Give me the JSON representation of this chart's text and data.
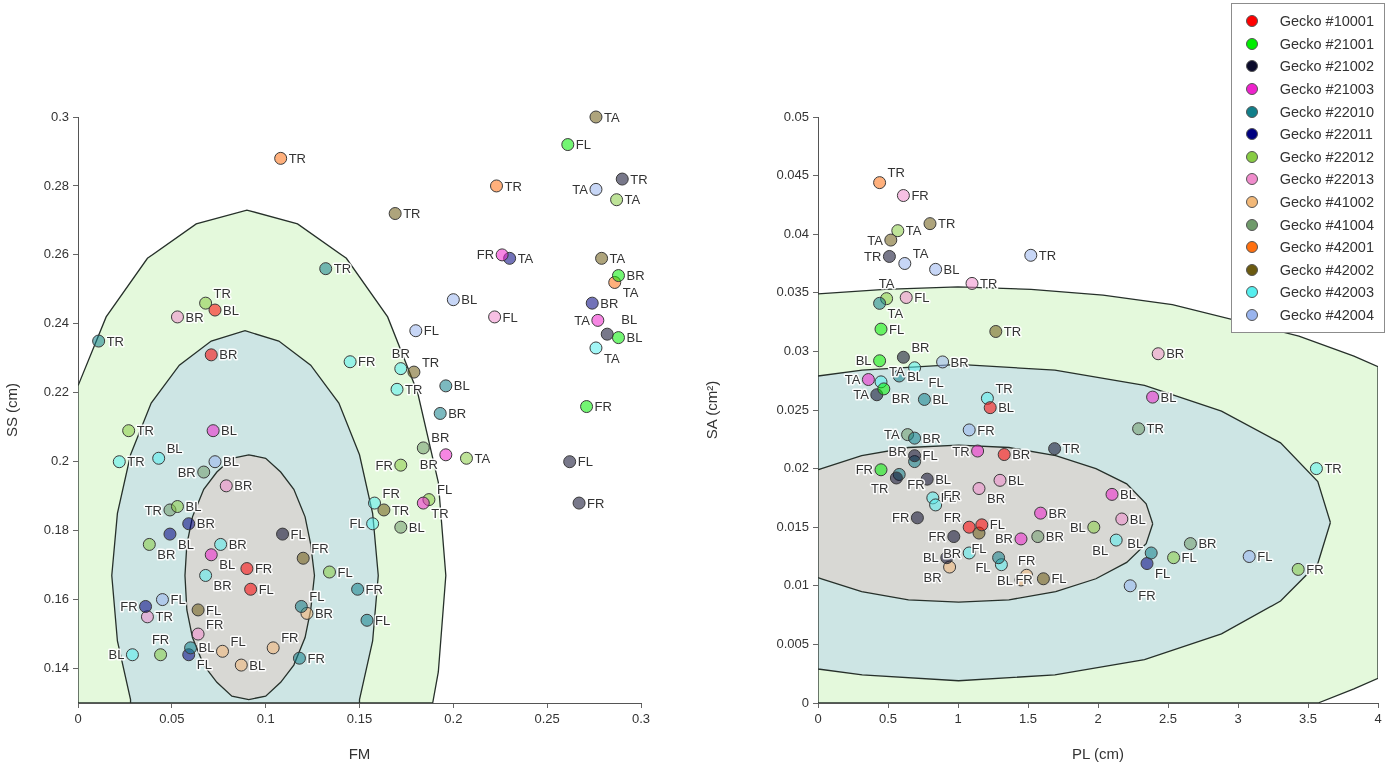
{
  "chart_data": [
    {
      "type": "scatter",
      "xlabel": "FM",
      "ylabel": "SS (cm)",
      "xlim": [
        0,
        0.3
      ],
      "ylim": [
        0.13,
        0.3
      ],
      "xticks": [
        0,
        0.05,
        0.1,
        0.15,
        0.2,
        0.25,
        0.3
      ],
      "yticks": [
        0.14,
        0.16,
        0.18,
        0.2,
        0.22,
        0.24,
        0.26,
        0.28,
        0.3
      ],
      "marker": "circle",
      "legend": false,
      "series": [
        {
          "type": "area",
          "marker": "none",
          "color": "#e4f9dc",
          "x": [
            0.189,
            0.192,
            0.196,
            0.192,
            0.181,
            0.165,
            0.143,
            0.117,
            0.09,
            0.063,
            0.037,
            0.015,
            0,
            0
          ],
          "values": [
            0.13,
            0.139,
            0.167,
            0.194,
            0.22,
            0.242,
            0.259,
            0.269,
            0.273,
            0.269,
            0.259,
            0.242,
            0.222,
            0.13
          ]
        },
        {
          "type": "area",
          "marker": "none",
          "color": "#cde5e4",
          "x": [
            0.16,
            0.157,
            0.15,
            0.139,
            0.124,
            0.107,
            0.089,
            0.071,
            0.054,
            0.039,
            0.028,
            0.021,
            0.018,
            0.021,
            0.028,
            0.028,
            0.15,
            0.15,
            0.157
          ],
          "values": [
            0.167,
            0.185,
            0.202,
            0.217,
            0.228,
            0.235,
            0.238,
            0.235,
            0.228,
            0.217,
            0.202,
            0.185,
            0.167,
            0.148,
            0.131,
            0.13,
            0.13,
            0.131,
            0.148
          ]
        },
        {
          "type": "area",
          "marker": "none",
          "color": "#d8d8d4",
          "x": [
            0.126,
            0.124,
            0.121,
            0.115,
            0.108,
            0.1,
            0.091,
            0.082,
            0.074,
            0.067,
            0.061,
            0.058,
            0.057,
            0.058,
            0.061,
            0.067,
            0.074,
            0.082,
            0.091,
            0.1,
            0.108,
            0.115,
            0.121,
            0.124
          ],
          "values": [
            0.167,
            0.176,
            0.184,
            0.192,
            0.197,
            0.201,
            0.202,
            0.201,
            0.197,
            0.192,
            0.184,
            0.176,
            0.167,
            0.157,
            0.149,
            0.141,
            0.136,
            0.132,
            0.131,
            0.132,
            0.136,
            0.141,
            0.149,
            0.157
          ]
        },
        {
          "color": "#ff0000",
          "x": [
            0.073,
            0.071,
            0.09,
            0.092
          ],
          "values": [
            0.244,
            0.231,
            0.169,
            0.163
          ],
          "value_labels": [
            "BL",
            "BR",
            "FR",
            "FL"
          ]
        },
        {
          "color": "#00ee00",
          "x": [
            0.261,
            0.288,
            0.288,
            0.271
          ],
          "values": [
            0.292,
            0.254,
            0.236,
            0.216
          ],
          "value_labels": [
            "FL",
            "BR",
            "BL",
            "FR"
          ]
        },
        {
          "color": "#0a0a2a",
          "x": [
            0.29,
            0.282,
            0.262,
            0.267,
            0.109
          ],
          "values": [
            0.282,
            0.237,
            0.2,
            0.188,
            0.179
          ],
          "value_labels": [
            "TR",
            "BL",
            "FL",
            "FR",
            "FL"
          ]
        },
        {
          "color": "#ee22cc",
          "x": [
            0.226,
            0.277,
            0.072,
            0.196,
            0.184,
            0.071
          ],
          "values": [
            0.26,
            0.241,
            0.209,
            0.202,
            0.188,
            0.173
          ],
          "value_labels": [
            "FR",
            "TA",
            "BL",
            "BR",
            "TR",
            "BL"
          ]
        },
        {
          "color": "#117f8a",
          "x": [
            0.011,
            0.132,
            0.196,
            0.193,
            0.06,
            0.149,
            0.154,
            0.119,
            0.118
          ],
          "values": [
            0.235,
            0.256,
            0.222,
            0.214,
            0.146,
            0.163,
            0.154,
            0.158,
            0.143
          ],
          "value_labels": [
            "TR",
            "TR",
            "BL",
            "BR",
            "BL",
            "FR",
            "FL",
            "FL",
            "FR"
          ]
        },
        {
          "color": "#000080",
          "x": [
            0.23,
            0.274,
            0.059,
            0.049,
            0.036,
            0.059
          ],
          "values": [
            0.259,
            0.246,
            0.182,
            0.179,
            0.158,
            0.144
          ],
          "value_labels": [
            "TA",
            "BR",
            "BR",
            "BL",
            "FR",
            "FL"
          ]
        },
        {
          "color": "#88cc44",
          "x": [
            0.287,
            0.068,
            0.027,
            0.207,
            0.172,
            0.187,
            0.053,
            0.038,
            0.134,
            0.044
          ],
          "values": [
            0.276,
            0.246,
            0.209,
            0.201,
            0.199,
            0.189,
            0.187,
            0.176,
            0.168,
            0.144
          ],
          "value_labels": [
            "TA",
            "TR",
            "TR",
            "TA",
            "FR",
            "FL",
            "BL",
            "BR",
            "FL",
            "FR"
          ]
        },
        {
          "color": "#f08ccc",
          "x": [
            0.222,
            0.053,
            0.079,
            0.037,
            0.064
          ],
          "values": [
            0.242,
            0.242,
            0.193,
            0.155,
            0.15
          ],
          "value_labels": [
            "FL",
            "BR",
            "BR",
            "TR",
            "FR"
          ]
        },
        {
          "color": "#f2b878",
          "x": [
            0.122,
            0.077,
            0.087,
            0.104
          ],
          "values": [
            0.156,
            0.145,
            0.141,
            0.146
          ],
          "value_labels": [
            "BR",
            "FL",
            "BL",
            "FR"
          ]
        },
        {
          "color": "#6f9a6a",
          "x": [
            0.067,
            0.184,
            0.172,
            0.049
          ],
          "values": [
            0.197,
            0.204,
            0.181,
            0.186
          ],
          "value_labels": [
            "BR",
            "BR",
            "BL",
            "TR"
          ]
        },
        {
          "color": "#ff7010",
          "x": [
            0.108,
            0.223,
            0.286
          ],
          "values": [
            0.288,
            0.28,
            0.252
          ],
          "value_labels": [
            "TR",
            "TR",
            "TA"
          ]
        },
        {
          "color": "#6b5a10",
          "x": [
            0.276,
            0.169,
            0.279,
            0.179,
            0.163,
            0.12,
            0.064
          ],
          "values": [
            0.3,
            0.272,
            0.259,
            0.226,
            0.186,
            0.172,
            0.157
          ],
          "value_labels": [
            "TA",
            "TR",
            "TA",
            "TR",
            "TR",
            "FR",
            "FL"
          ]
        },
        {
          "color": "#55eeee",
          "x": [
            0.276,
            0.145,
            0.172,
            0.17,
            0.022,
            0.043,
            0.158,
            0.157,
            0.076,
            0.068,
            0.029
          ],
          "values": [
            0.233,
            0.229,
            0.227,
            0.221,
            0.2,
            0.201,
            0.188,
            0.182,
            0.176,
            0.167,
            0.144
          ],
          "value_labels": [
            "TA",
            "FR",
            "BR",
            "TR",
            "TR",
            "BL",
            "FR",
            "FL",
            "BR",
            "BR",
            "BL"
          ]
        },
        {
          "color": "#99b4ee",
          "x": [
            0.276,
            0.2,
            0.18,
            0.073,
            0.045
          ],
          "values": [
            0.279,
            0.247,
            0.238,
            0.2,
            0.16
          ],
          "value_labels": [
            "TA",
            "BL",
            "FL",
            "BL",
            "FL"
          ]
        }
      ]
    },
    {
      "type": "scatter",
      "xlabel": "PL (cm)",
      "ylabel": "SA (cm²)",
      "xlim": [
        0,
        4
      ],
      "ylim": [
        0,
        0.05
      ],
      "xticks": [
        0,
        0.5,
        1,
        1.5,
        2,
        2.5,
        3,
        3.5,
        4
      ],
      "yticks": [
        0,
        0.005,
        0.01,
        0.015,
        0.02,
        0.025,
        0.03,
        0.035,
        0.04,
        0.045,
        0.05
      ],
      "marker": "circle",
      "legend": "top right",
      "series": [
        {
          "type": "area",
          "marker": "none",
          "color": "#e4f9dc",
          "x": [
            4,
            4,
            3.828,
            3.435,
            3.0,
            2.531,
            2.036,
            1.522,
            1.0,
            0.478,
            0,
            0,
            3.572,
            3.828
          ],
          "values": [
            0.0021,
            0.0287,
            0.0296,
            0.0313,
            null,
            0.034,
            0.0348,
            0.0353,
            0.0355,
            0.0353,
            0.0349,
            0,
            0,
            0.0012
          ]
        },
        {
          "type": "area",
          "marker": "none",
          "color": "#cde5e4",
          "x": [
            3.66,
            3.57,
            3.304,
            2.882,
            2.332,
            1.692,
            1.004,
            0.316,
            0,
            0,
            0.316,
            1.004,
            1.692,
            2.332,
            2.882,
            3.304,
            3.57
          ],
          "values": [
            0.0154,
            0.0189,
            0.0222,
            0.0249,
            0.0271,
            0.0284,
            0.0289,
            0.0284,
            0.0279,
            0.0029,
            0.0024,
            0.0019,
            0.0024,
            0.0037,
            0.0059,
            0.0087,
            0.0119
          ]
        },
        {
          "type": "area",
          "marker": "none",
          "color": "#d8d8d4",
          "x": [
            2.391,
            2.344,
            2.205,
            1.985,
            1.698,
            1.364,
            1.005,
            0.646,
            0.312,
            0.025,
            0,
            0,
            0.025,
            0.312,
            0.646,
            1.005,
            1.364,
            1.698,
            1.985,
            2.205,
            2.344
          ],
          "values": [
            0.0153,
            0.017,
            0.0187,
            0.02,
            0.0211,
            0.0218,
            0.022,
            0.0218,
            0.0211,
            0.02,
            0.0199,
            0.0107,
            0.0106,
            0.0095,
            0.0088,
            0.0086,
            0.0088,
            0.0095,
            0.0106,
            0.012,
            0.0136
          ]
        },
        {
          "name": "Gecko #10001",
          "color": "#ff0000",
          "x": [
            1.23,
            1.33,
            1.08,
            1.17
          ],
          "values": [
            0.0252,
            0.0212,
            0.015,
            0.0152
          ],
          "value_labels": [
            "BL",
            "BR",
            "FR",
            "FL"
          ]
        },
        {
          "name": "Gecko #21001",
          "color": "#00ee00",
          "x": [
            0.45,
            0.44,
            0.47,
            0.45
          ],
          "values": [
            0.0319,
            0.0292,
            0.0268,
            0.0199
          ],
          "value_labels": [
            "FL",
            "BL",
            "BR",
            "FR"
          ]
        },
        {
          "name": "Gecko #21002",
          "color": "#0a0a2a",
          "x": [
            0.51,
            0.61,
            0.42,
            1.69,
            0.69,
            0.56,
            0.78,
            0.71,
            0.97,
            0.92
          ],
          "values": [
            0.0381,
            0.0295,
            0.0263,
            0.0217,
            0.0211,
            0.0192,
            0.0191,
            0.0158,
            0.0142,
            0.0124
          ],
          "value_labels": [
            "TR",
            "BR",
            "TA",
            "TR",
            "FL",
            "TR",
            "BL",
            "FR",
            "FR",
            "BL"
          ]
        },
        {
          "name": "Gecko #21003",
          "color": "#ee22cc",
          "x": [
            0.36,
            2.39,
            1.14,
            2.1,
            1.59,
            1.45
          ],
          "values": [
            0.0276,
            0.0261,
            0.0215,
            0.0178,
            0.0162,
            0.014
          ],
          "value_labels": [
            "TA",
            "BL",
            "TR",
            "BL",
            "BR",
            "BR"
          ]
        },
        {
          "name": "Gecko #22010",
          "color": "#117f8a",
          "x": [
            0.44,
            0.58,
            0.76,
            0.69,
            0.69,
            0.58,
            1.29,
            2.38
          ],
          "values": [
            0.0341,
            0.0279,
            0.0259,
            0.0226,
            0.0206,
            0.0195,
            0.0124,
            0.0128
          ],
          "value_labels": [
            "TA",
            "BL",
            "BL",
            "BR",
            "BR",
            "FR",
            "FL",
            "BL"
          ]
        },
        {
          "name": "Gecko #22011",
          "color": "#000080",
          "x": [
            2.35
          ],
          "values": [
            0.0119
          ],
          "value_labels": [
            "FL"
          ]
        },
        {
          "name": "Gecko #22012",
          "color": "#88cc44",
          "x": [
            0.57,
            0.49,
            1.97,
            2.54,
            3.43
          ],
          "values": [
            0.0403,
            0.0345,
            0.015,
            0.0124,
            0.0114
          ],
          "value_labels": [
            "TA",
            "TA",
            "BL",
            "FL",
            "FR"
          ]
        },
        {
          "name": "Gecko #22013",
          "color": "#f08ccc",
          "x": [
            0.61,
            0.63,
            1.1,
            2.43,
            1.3,
            1.15,
            2.17
          ],
          "values": [
            0.0433,
            0.0346,
            0.0358,
            0.0298,
            0.019,
            0.0183,
            0.0157
          ],
          "value_labels": [
            "FR",
            "FL",
            "TR",
            "BR",
            "BL",
            "BR",
            "BL"
          ]
        },
        {
          "name": "Gecko #41002",
          "color": "#f2b878",
          "x": [
            0.94,
            1.49,
            1.45
          ],
          "values": [
            0.0116,
            0.0109,
            0.0105
          ],
          "value_labels": [
            "BR",
            "FR",
            "BL"
          ]
        },
        {
          "name": "Gecko #41004",
          "color": "#6f9a6a",
          "x": [
            2.29,
            0.64,
            1.57,
            2.66
          ],
          "values": [
            0.0234,
            0.0229,
            0.0142,
            0.0136
          ],
          "value_labels": [
            "TR",
            "TA",
            "BR",
            "BR"
          ]
        },
        {
          "name": "Gecko #42001",
          "color": "#ff7010",
          "x": [
            0.44
          ],
          "values": [
            0.0444
          ],
          "value_labels": [
            "TR"
          ]
        },
        {
          "name": "Gecko #42002",
          "color": "#6b5a10",
          "x": [
            0.8,
            0.52,
            1.27,
            1.15,
            1.61
          ],
          "values": [
            0.0409,
            0.0395,
            0.0317,
            0.0145,
            0.0106
          ],
          "value_labels": [
            "TR",
            "TA",
            "TR",
            "FL",
            "FL"
          ]
        },
        {
          "name": "Gecko #42003",
          "color": "#55eeee",
          "x": [
            0.69,
            0.45,
            1.21,
            3.56,
            0.82,
            0.84,
            2.13,
            1.08,
            1.31
          ],
          "values": [
            0.0286,
            0.0274,
            0.026,
            0.02,
            0.0175,
            0.0169,
            0.0139,
            0.0128,
            0.0118
          ],
          "value_labels": [
            "FL",
            "TA",
            "TR",
            "TR",
            "FL",
            "FR",
            "BL",
            "BR",
            "FR"
          ]
        },
        {
          "name": "Gecko #42004",
          "color": "#99b4ee",
          "x": [
            0.62,
            0.84,
            1.52,
            0.89,
            1.08,
            3.08,
            2.23
          ],
          "values": [
            0.0375,
            0.037,
            0.0382,
            0.0291,
            0.0233,
            0.0125,
            0.01
          ],
          "value_labels": [
            "TA",
            "BL",
            "TR",
            "BR",
            "FR",
            "FL",
            "FR"
          ]
        }
      ]
    }
  ]
}
